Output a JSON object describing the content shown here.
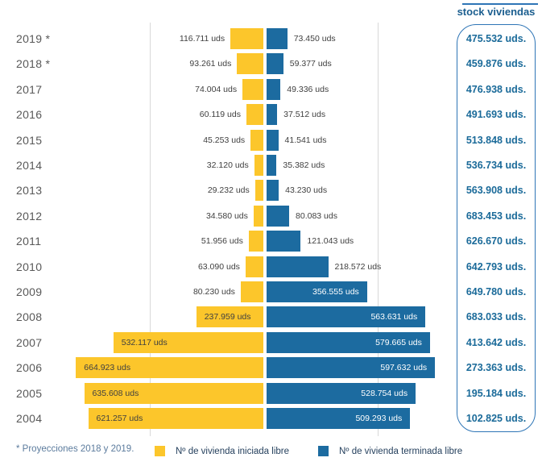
{
  "chart_data": {
    "type": "bar",
    "subtype": "diverging-horizontal",
    "title": "",
    "unit": "uds",
    "categories": [
      "2019 *",
      "2018 *",
      "2017",
      "2016",
      "2015",
      "2014",
      "2013",
      "2012",
      "2011",
      "2010",
      "2009",
      "2008",
      "2007",
      "2006",
      "2005",
      "2004"
    ],
    "series": [
      {
        "name": "Nº de vivienda iniciada libre",
        "side": "left",
        "color": "#fcc62b",
        "values": [
          116711,
          93261,
          74004,
          60119,
          45253,
          32120,
          29232,
          34580,
          51956,
          63090,
          80230,
          237959,
          532117,
          664923,
          635608,
          621257
        ]
      },
      {
        "name": "Nº de vivienda terminada libre",
        "side": "right",
        "color": "#1c6ba0",
        "values": [
          73450,
          59377,
          49336,
          37512,
          41541,
          35382,
          43230,
          80083,
          121043,
          218572,
          356555,
          563631,
          579665,
          597632,
          528754,
          509293
        ]
      }
    ],
    "stock": {
      "title": "stock viviendas",
      "unit": "uds.",
      "values": [
        475532,
        459876,
        476938,
        491693,
        513848,
        536734,
        563908,
        683453,
        626670,
        642793,
        649780,
        683033,
        413642,
        273363,
        195184,
        102825
      ]
    },
    "footnote": "* Proyecciones 2018 y 2019.",
    "layout": {
      "legend_position": "bottom",
      "grid": "two-light-vertical-lines",
      "colors": {
        "gridline": "#d9d9d9",
        "stock_border": "#2e75b6",
        "stock_text": "#1a6a99",
        "year_text": "#595959",
        "value_text": "#404040"
      }
    }
  }
}
